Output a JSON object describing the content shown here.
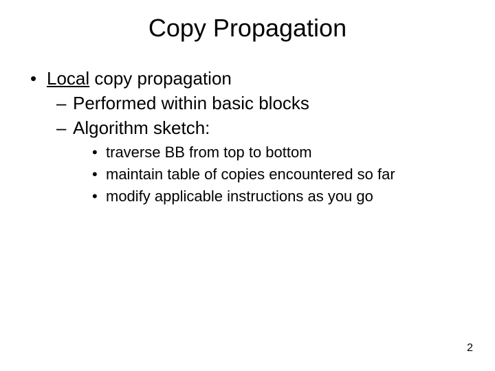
{
  "slide": {
    "title": "Copy Propagation",
    "title_fontsize": 36,
    "body_fontsize": 26,
    "sub_fontsize": 22,
    "background_color": "#ffffff",
    "text_color": "#000000",
    "font_family": "Comic Sans MS",
    "level1": {
      "bullet": "•",
      "underlined_word": "Local",
      "rest": " copy propagation"
    },
    "level2": [
      {
        "dash": "–",
        "text": "Performed within basic blocks"
      },
      {
        "dash": "–",
        "text": "Algorithm sketch:"
      }
    ],
    "level3": [
      {
        "bullet": "•",
        "text": "traverse BB from top to bottom"
      },
      {
        "bullet": "•",
        "text": "maintain table of copies encountered so far"
      },
      {
        "bullet": "•",
        "text": "modify applicable instructions as you go"
      }
    ],
    "page_number": "2"
  }
}
